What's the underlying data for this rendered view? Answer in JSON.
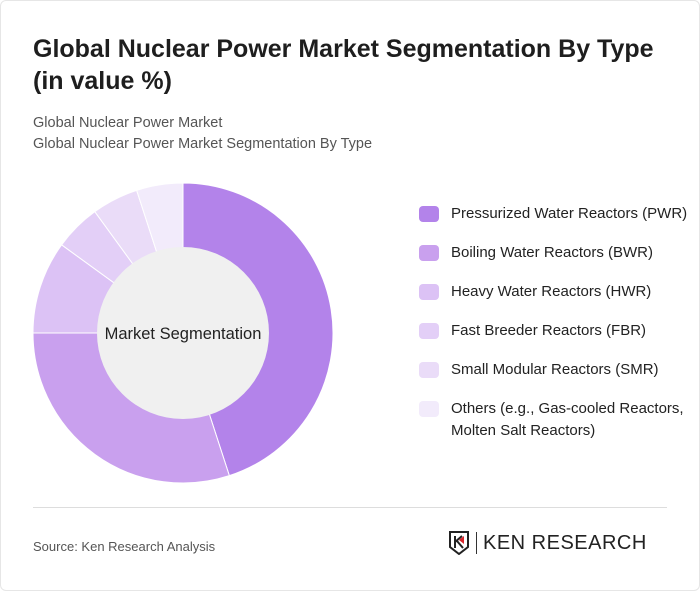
{
  "title": "Global Nuclear Power Market Segmentation By Type (in value %)",
  "subtitle1": "Global Nuclear Power Market",
  "subtitle2": "Global Nuclear Power Market Segmentation By Type",
  "source": "Source: Ken Research Analysis",
  "logo_text": "KEN RESEARCH",
  "chart_data": {
    "type": "pie",
    "variant": "donut",
    "center_label": "Market Segmentation",
    "categories": [
      "Pressurized Water Reactors (PWR)",
      "Boiling Water Reactors (BWR)",
      "Heavy Water Reactors (HWR)",
      "Fast Breeder Reactors (FBR)",
      "Small Modular Reactors (SMR)",
      "Others (e.g., Gas-cooled Reactors, Molten Salt Reactors)"
    ],
    "values": [
      45,
      30,
      10,
      5,
      5,
      5
    ],
    "colors": [
      "#b383ea",
      "#c9a0ee",
      "#dcc2f5",
      "#e3cff7",
      "#eadcf8",
      "#f2ebfb"
    ],
    "legend_position": "right"
  }
}
